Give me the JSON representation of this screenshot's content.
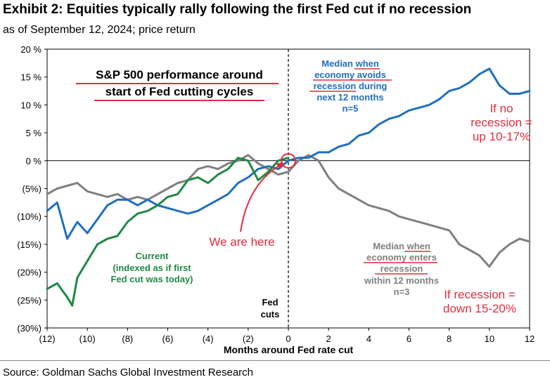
{
  "header": {
    "title": "Exhibit 2: Equities typically rally following the first Fed cut if no recession",
    "subtitle": "as of September 12, 2024; price return"
  },
  "source": "Source: Goldman Sachs Global Investment Research",
  "colors": {
    "blue": "#1f6fc0",
    "gray": "#7f7f7f",
    "green": "#1e8a44",
    "red": "#e02d3c",
    "axis": "#000000"
  },
  "chart_data": {
    "type": "line",
    "xlabel": "Months around Fed rate cut",
    "xlim": [
      -12,
      12
    ],
    "ylim": [
      -30,
      20
    ],
    "x_ticks": [
      {
        "v": -12,
        "label": "(12)"
      },
      {
        "v": -10,
        "label": "(10)"
      },
      {
        "v": -8,
        "label": "(8)"
      },
      {
        "v": -6,
        "label": "(6)"
      },
      {
        "v": -4,
        "label": "(4)"
      },
      {
        "v": -2,
        "label": "(2)"
      },
      {
        "v": 0,
        "label": "0"
      },
      {
        "v": 2,
        "label": "2"
      },
      {
        "v": 4,
        "label": "4"
      },
      {
        "v": 6,
        "label": "6"
      },
      {
        "v": 8,
        "label": "8"
      },
      {
        "v": 10,
        "label": "10"
      },
      {
        "v": 12,
        "label": "12"
      }
    ],
    "y_ticks": [
      {
        "v": 20,
        "label": "20 %"
      },
      {
        "v": 15,
        "label": "15 %"
      },
      {
        "v": 10,
        "label": "10 %"
      },
      {
        "v": 5,
        "label": "5 %"
      },
      {
        "v": 0,
        "label": "0 %"
      },
      {
        "v": -5,
        "label": "(5%)"
      },
      {
        "v": -10,
        "label": "(10%)"
      },
      {
        "v": -15,
        "label": "(15%)"
      },
      {
        "v": -20,
        "label": "(20%)"
      },
      {
        "v": -25,
        "label": "(25%)"
      },
      {
        "v": -30,
        "label": "(30%)"
      }
    ],
    "series": [
      {
        "key": "gray",
        "x": [
          -12,
          -11.5,
          -11,
          -10.5,
          -10,
          -9.5,
          -9,
          -8.5,
          -8,
          -7.5,
          -7,
          -6.5,
          -6,
          -5.5,
          -5,
          -4.5,
          -4,
          -3.5,
          -3,
          -2.5,
          -2,
          -1.5,
          -1,
          -0.5,
          0,
          0.5,
          1,
          1.5,
          2,
          2.5,
          3,
          3.5,
          4,
          4.5,
          5,
          5.5,
          6,
          6.5,
          7,
          7.5,
          8,
          8.5,
          9,
          9.5,
          10,
          10.5,
          11,
          11.5,
          12
        ],
        "y": [
          -6,
          -5,
          -4.5,
          -4,
          -5.5,
          -6,
          -6.5,
          -6,
          -7,
          -6.5,
          -7,
          -6,
          -5,
          -4,
          -3.5,
          -1.5,
          -1,
          -1.5,
          -0.5,
          0,
          1,
          -0.5,
          -1.5,
          -2.5,
          -2,
          0,
          1,
          0,
          -3,
          -5,
          -6,
          -7,
          -8,
          -8.5,
          -9,
          -10,
          -10.5,
          -11,
          -11.5,
          -12,
          -12.5,
          -15,
          -16,
          -17,
          -19,
          -16.5,
          -15,
          -14,
          -14.5
        ]
      },
      {
        "key": "blue",
        "x": [
          -12,
          -11.5,
          -11,
          -10.5,
          -10,
          -9.5,
          -9,
          -8.5,
          -8,
          -7.5,
          -7,
          -6.5,
          -6,
          -5.5,
          -5,
          -4.5,
          -4,
          -3.5,
          -3,
          -2.5,
          -2,
          -1.5,
          -1,
          -0.5,
          0,
          0.5,
          1,
          1.5,
          2,
          2.5,
          3,
          3.5,
          4,
          4.5,
          5,
          5.5,
          6,
          6.5,
          7,
          7.5,
          8,
          8.5,
          9,
          9.5,
          10,
          10.5,
          11,
          11.5,
          12
        ],
        "y": [
          -9,
          -7.5,
          -14,
          -11,
          -13,
          -10.5,
          -8,
          -7,
          -7,
          -8,
          -7,
          -8,
          -8.5,
          -9,
          -9.5,
          -9,
          -8,
          -7,
          -6,
          -4,
          -3,
          -1.5,
          -1,
          -1.5,
          0,
          0.5,
          0.5,
          1.5,
          1.5,
          2.5,
          3,
          4.5,
          5,
          6.5,
          7.5,
          8,
          9,
          9.5,
          10,
          11,
          12.5,
          13,
          14,
          15.5,
          16.5,
          13.5,
          12,
          12,
          12.5
        ]
      },
      {
        "key": "green",
        "x": [
          -12,
          -11.5,
          -11,
          -10.75,
          -10.5,
          -10,
          -9.5,
          -9,
          -8.5,
          -8,
          -7.5,
          -7,
          -6.5,
          -6,
          -5.5,
          -5,
          -4.5,
          -4,
          -3.5,
          -3,
          -2.5,
          -2,
          -1.5,
          -1,
          -0.5,
          0
        ],
        "y": [
          -23,
          -22,
          -24.5,
          -26,
          -21,
          -18,
          -15,
          -14,
          -13.5,
          -11,
          -9.5,
          -9,
          -8,
          -6.5,
          -6,
          -3.5,
          -3,
          -4,
          -2.5,
          -1.5,
          0.5,
          0,
          -3.5,
          -2,
          0,
          0.5
        ]
      }
    ],
    "annotations": {
      "box_line1": "S&P 500 performance around",
      "box_line2": "start of Fed cutting cycles",
      "median_no_rec": [
        "Median when",
        "economy avoids",
        "recession during",
        "next 12 months",
        "n=5"
      ],
      "no_rec_callout": [
        "If no",
        "recession =",
        "up 10-17%"
      ],
      "we_are_here": "We are here",
      "current_label": [
        "Current",
        "(indexed as if first",
        "Fed cut was today)"
      ],
      "median_rec": [
        "Median when",
        "economy enters",
        "recession",
        "within 12 months",
        "n=3"
      ],
      "rec_callout": [
        "If recession =",
        "down 15-20%"
      ],
      "fed_cuts": [
        "Fed",
        "cuts"
      ]
    }
  }
}
